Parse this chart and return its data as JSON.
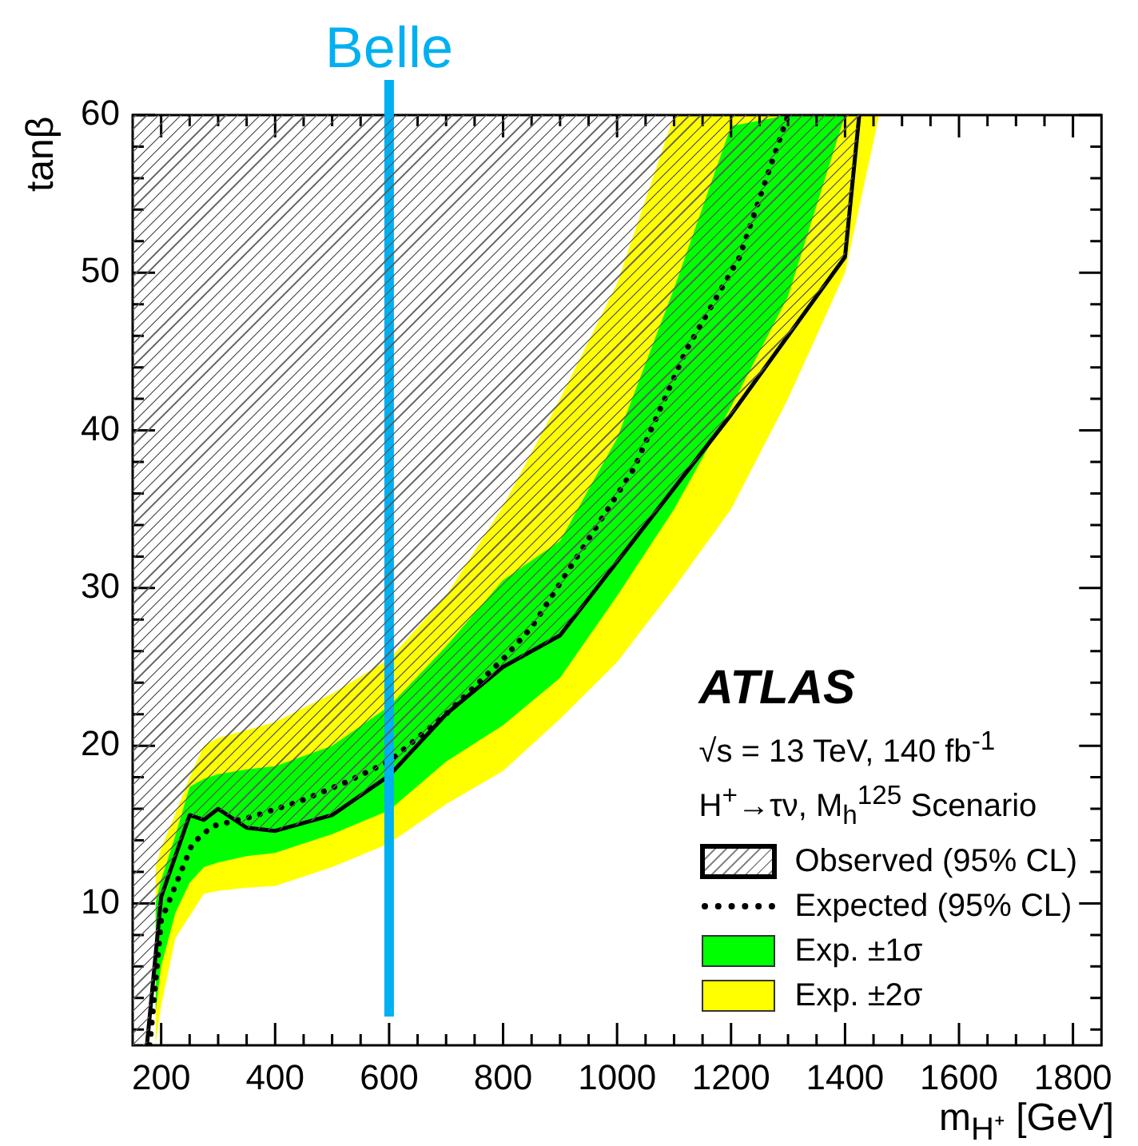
{
  "chart_data": {
    "type": "line",
    "xlabel": "m$_{H⁺}$ [GeV]",
    "ylabel": "tanβ",
    "annotations": [
      "ATLAS",
      "√s = 13 TeV, 140 fb$^{-1}$",
      "H$^{+}$→τν, M$_{h}$$^{125}$ Scenario"
    ],
    "xlim": [
      150,
      1850
    ],
    "ylim": [
      1,
      60
    ],
    "xticks": [
      200,
      {
        "value": 250,
        "label": null
      },
      {
        "value": 300,
        "label": null
      },
      {
        "value": 350,
        "label": null
      },
      400,
      {
        "value": 450,
        "label": null
      },
      {
        "value": 500,
        "label": null
      },
      {
        "value": 550,
        "label": null
      },
      600,
      {
        "value": 650,
        "label": null
      },
      {
        "value": 700,
        "label": null
      },
      {
        "value": 750,
        "label": null
      },
      800,
      {
        "value": 850,
        "label": null
      },
      {
        "value": 900,
        "label": null
      },
      {
        "value": 950,
        "label": null
      },
      1000,
      {
        "value": 1050,
        "label": null
      },
      {
        "value": 1100,
        "label": null
      },
      {
        "value": 1150,
        "label": null
      },
      1200,
      {
        "value": 1250,
        "label": null
      },
      {
        "value": 1300,
        "label": null
      },
      {
        "value": 1350,
        "label": null
      },
      1400,
      {
        "value": 1450,
        "label": null
      },
      {
        "value": 1500,
        "label": null
      },
      {
        "value": 1550,
        "label": null
      },
      1600,
      {
        "value": 1650,
        "label": null
      },
      {
        "value": 1700,
        "label": null
      },
      {
        "value": 1750,
        "label": null
      },
      1800
    ],
    "yticks": [
      {
        "value": 2,
        "label": null
      },
      {
        "value": 4,
        "label": null
      },
      {
        "value": 6,
        "label": null
      },
      {
        "value": 8,
        "label": null
      },
      10,
      {
        "value": 12,
        "label": null
      },
      {
        "value": 14,
        "label": null
      },
      {
        "value": 16,
        "label": null
      },
      {
        "value": 18,
        "label": null
      },
      20,
      {
        "value": 22,
        "label": null
      },
      {
        "value": 24,
        "label": null
      },
      {
        "value": 26,
        "label": null
      },
      {
        "value": 28,
        "label": null
      },
      30,
      {
        "value": 32,
        "label": null
      },
      {
        "value": 34,
        "label": null
      },
      {
        "value": 36,
        "label": null
      },
      {
        "value": 38,
        "label": null
      },
      40,
      {
        "value": 42,
        "label": null
      },
      {
        "value": 44,
        "label": null
      },
      {
        "value": 46,
        "label": null
      },
      {
        "value": 48,
        "label": null
      },
      50,
      {
        "value": 52,
        "label": null
      },
      {
        "value": 54,
        "label": null
      },
      {
        "value": 56,
        "label": null
      },
      {
        "value": 58,
        "label": null
      },
      60
    ],
    "grid": false,
    "legend": "bottom right",
    "ref_lines": [
      {
        "axis": "x",
        "value": 600,
        "label": "Belle",
        "color": "#00b0f0"
      }
    ],
    "series": [
      {
        "name": "Observed (95% CL)",
        "type": "line",
        "color": "#000000",
        "line_style": "solid",
        "x": [
          175,
          200,
          250,
          275,
          300,
          350,
          400,
          500,
          600,
          700,
          800,
          900,
          1200,
          1400,
          1425
        ],
        "values": [
          1,
          10.4,
          15.6,
          15.3,
          16,
          14.8,
          14.6,
          15.6,
          18.1,
          22,
          25,
          27,
          41,
          51,
          60
        ]
      },
      {
        "name": "Expected (95% CL)",
        "type": "line",
        "color": "#000000",
        "line_style": "dotted",
        "x": [
          180,
          200,
          255,
          290,
          360,
          445,
          525,
          600,
          700,
          800,
          850,
          1030,
          1120,
          1215,
          1300
        ],
        "values": [
          1,
          8.9,
          13.8,
          14.9,
          15.5,
          16.5,
          17.7,
          19,
          22,
          25.5,
          27.5,
          37.6,
          45,
          51,
          60
        ]
      },
      {
        "name": "Exp. ±1σ",
        "type": "area",
        "color": "#00ff00",
        "x": [
          190,
          200,
          225,
          250,
          275,
          300,
          350,
          400,
          500,
          600,
          700,
          800,
          900,
          1000,
          1100,
          1200,
          1300,
          1400
        ],
        "values": [
          null,
          null,
          null,
          null,
          null,
          null,
          null,
          null,
          null,
          null,
          null,
          null,
          null,
          null,
          null,
          null,
          null,
          null
        ],
        "lower": [
          3,
          6,
          9.4,
          11.3,
          12.3,
          12.6,
          13,
          13.2,
          14.4,
          15.9,
          19,
          21.3,
          24.3,
          29.5,
          35,
          41.5,
          48.5,
          60
        ],
        "upper": [
          10,
          11.5,
          14.3,
          17.4,
          17.9,
          18.2,
          18.5,
          18.7,
          20,
          22.5,
          26.3,
          30.5,
          33,
          39.5,
          49,
          59.3,
          60,
          60
        ]
      },
      {
        "name": "Exp. ±2σ",
        "type": "area",
        "color": "#ffff00",
        "x": [
          190,
          200,
          225,
          250,
          275,
          300,
          350,
          400,
          500,
          600,
          700,
          800,
          900,
          1000,
          1100,
          1200,
          1300,
          1400,
          1460
        ],
        "values": [
          null,
          null,
          null,
          null,
          null,
          null,
          null,
          null,
          null,
          null,
          null,
          null,
          null,
          null,
          null,
          null,
          null,
          null,
          null
        ],
        "lower": [
          1,
          3.5,
          7.8,
          9.2,
          10.6,
          10.8,
          11,
          11.1,
          12.3,
          13.8,
          16.3,
          18.4,
          21.7,
          25.3,
          30,
          35,
          42,
          50,
          60
        ],
        "upper": [
          12.3,
          13.5,
          15.7,
          18,
          20,
          20.5,
          21,
          21.5,
          23.3,
          25.5,
          29.5,
          35.2,
          42,
          49.3,
          60,
          60,
          60,
          60,
          60
        ]
      }
    ]
  }
}
